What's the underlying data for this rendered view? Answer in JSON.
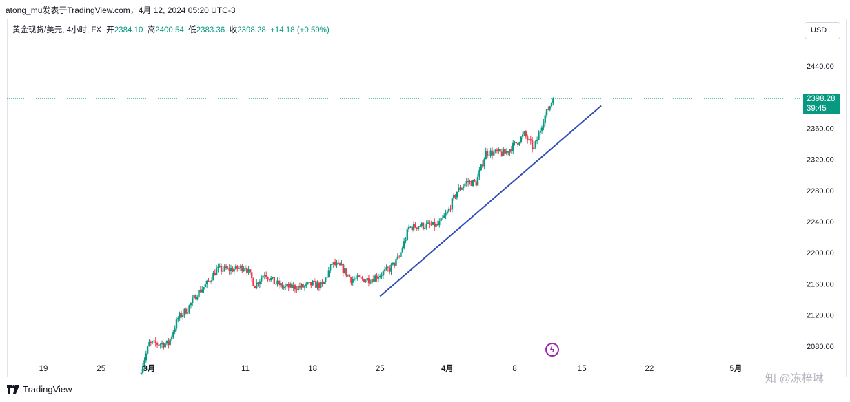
{
  "header": {
    "publisher": "atong_mu发表于TradingView.com，4月 12, 2024 05:20 UTC-3"
  },
  "legend": {
    "symbol": "黄金现货/美元, 4小时, FX",
    "open_label": "开",
    "open": "2384.10",
    "high_label": "高",
    "high": "2400.54",
    "low_label": "低",
    "low": "2383.36",
    "close_label": "收",
    "close": "2398.28",
    "change": "+14.18 (+0.59%)"
  },
  "currency_button": "USD",
  "price_tag": {
    "price": "2398.28",
    "countdown": "39:45"
  },
  "footer": {
    "brand": "TradingView"
  },
  "watermark": "知 @冻梓琳",
  "colors": {
    "up": "#089981",
    "down": "#f23645",
    "trendline": "#2e4db7",
    "tag": "#089981",
    "event": "#9c27b0"
  },
  "icons": {
    "event_marker": "lightning-icon",
    "brand": "tradingview-logo-icon"
  },
  "chart_data": {
    "type": "candlestick",
    "timeframe": "4h",
    "y_axis": {
      "ticks": [
        "2440.00",
        "2400.00",
        "2360.00",
        "2320.00",
        "2280.00",
        "2240.00",
        "2200.00",
        "2160.00",
        "2120.00",
        "2080.00"
      ],
      "range": [
        2058,
        2473
      ]
    },
    "x_axis": {
      "ticks": [
        {
          "label": "19",
          "date": "2024-02-19",
          "bold": false
        },
        {
          "label": "25",
          "date": "2024-02-25",
          "bold": false
        },
        {
          "label": "3月",
          "date": "2024-03-01",
          "bold": true
        },
        {
          "label": "11",
          "date": "2024-03-11",
          "bold": false
        },
        {
          "label": "18",
          "date": "2024-03-18",
          "bold": false
        },
        {
          "label": "25",
          "date": "2024-03-25",
          "bold": false
        },
        {
          "label": "4月",
          "date": "2024-04-01",
          "bold": true
        },
        {
          "label": "8",
          "date": "2024-04-08",
          "bold": false
        },
        {
          "label": "15",
          "date": "2024-04-15",
          "bold": false
        },
        {
          "label": "22",
          "date": "2024-04-22",
          "bold": false
        },
        {
          "label": "5月",
          "date": "2024-05-01",
          "bold": true
        }
      ]
    },
    "last_price": 2398.28,
    "trendline": [
      {
        "date": "2024-03-25",
        "price": 2144
      },
      {
        "date": "2024-04-17",
        "price": 2389
      }
    ],
    "daily_closes": [
      {
        "date": "2024-02-29",
        "price": 2044
      },
      {
        "date": "2024-03-01",
        "price": 2083
      },
      {
        "date": "2024-03-03",
        "price": 2083
      },
      {
        "date": "2024-03-04",
        "price": 2116
      },
      {
        "date": "2024-03-05",
        "price": 2128
      },
      {
        "date": "2024-03-06",
        "price": 2148
      },
      {
        "date": "2024-03-07",
        "price": 2160
      },
      {
        "date": "2024-03-08",
        "price": 2178
      },
      {
        "date": "2024-03-10",
        "price": 2179
      },
      {
        "date": "2024-03-11",
        "price": 2183
      },
      {
        "date": "2024-03-12",
        "price": 2158
      },
      {
        "date": "2024-03-13",
        "price": 2174
      },
      {
        "date": "2024-03-14",
        "price": 2162
      },
      {
        "date": "2024-03-15",
        "price": 2156
      },
      {
        "date": "2024-03-17",
        "price": 2156
      },
      {
        "date": "2024-03-18",
        "price": 2160
      },
      {
        "date": "2024-03-19",
        "price": 2157
      },
      {
        "date": "2024-03-20",
        "price": 2186
      },
      {
        "date": "2024-03-21",
        "price": 2181
      },
      {
        "date": "2024-03-22",
        "price": 2166
      },
      {
        "date": "2024-03-24",
        "price": 2166
      },
      {
        "date": "2024-03-25",
        "price": 2172
      },
      {
        "date": "2024-03-26",
        "price": 2179
      },
      {
        "date": "2024-03-27",
        "price": 2194
      },
      {
        "date": "2024-03-28",
        "price": 2232
      },
      {
        "date": "2024-03-29",
        "price": 2235
      },
      {
        "date": "2024-03-31",
        "price": 2235
      },
      {
        "date": "2024-04-01",
        "price": 2251
      },
      {
        "date": "2024-04-02",
        "price": 2279
      },
      {
        "date": "2024-04-03",
        "price": 2291
      },
      {
        "date": "2024-04-04",
        "price": 2290
      },
      {
        "date": "2024-04-05",
        "price": 2329
      },
      {
        "date": "2024-04-07",
        "price": 2328
      },
      {
        "date": "2024-04-08",
        "price": 2339
      },
      {
        "date": "2024-04-09",
        "price": 2352
      },
      {
        "date": "2024-04-10",
        "price": 2333
      },
      {
        "date": "2024-04-11",
        "price": 2372
      },
      {
        "date": "2024-04-12",
        "price": 2398
      }
    ]
  }
}
